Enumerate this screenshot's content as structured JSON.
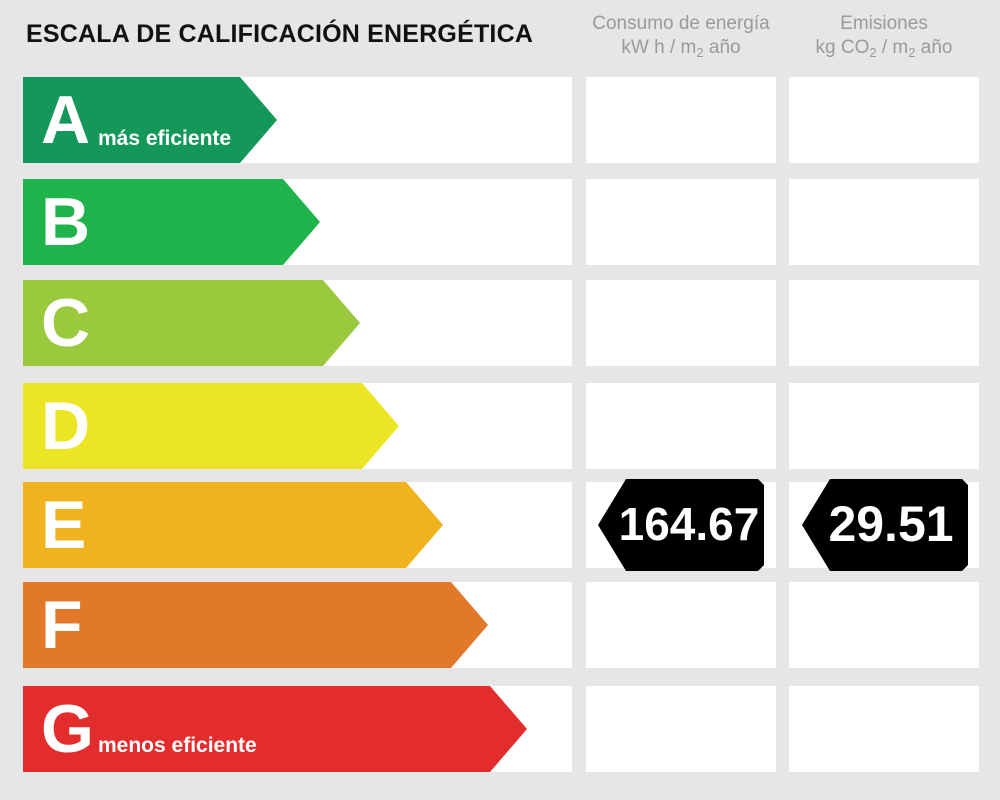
{
  "title": "ESCALA DE CALIFICACIÓN ENERGÉTICA",
  "columns": {
    "consumption": {
      "line1": "Consumo de energía",
      "line2_pre": "kW h / m",
      "line2_sub": "2",
      "line2_post": " año"
    },
    "emissions": {
      "line1": "Emisiones",
      "line2_pre": "kg CO",
      "line2_sub1": "2",
      "line2_mid": " / m",
      "line2_sub2": "2",
      "line2_post": " año"
    }
  },
  "ratings": [
    {
      "letter": "A",
      "sub": "más eficiente",
      "color": "#13985a"
    },
    {
      "letter": "B",
      "sub": "",
      "color": "#1eb44b"
    },
    {
      "letter": "C",
      "sub": "",
      "color": "#9bc93e"
    },
    {
      "letter": "D",
      "sub": "",
      "color": "#ece524"
    },
    {
      "letter": "E",
      "sub": "",
      "color": "#f0b31d"
    },
    {
      "letter": "F",
      "sub": "",
      "color": "#e2792a"
    },
    {
      "letter": "G",
      "sub": "menos eficiente",
      "color": "#e32d2c"
    }
  ],
  "result": {
    "rating": "E",
    "consumption": "164.67",
    "emissions": "29.51",
    "tag_color": "#000000"
  }
}
